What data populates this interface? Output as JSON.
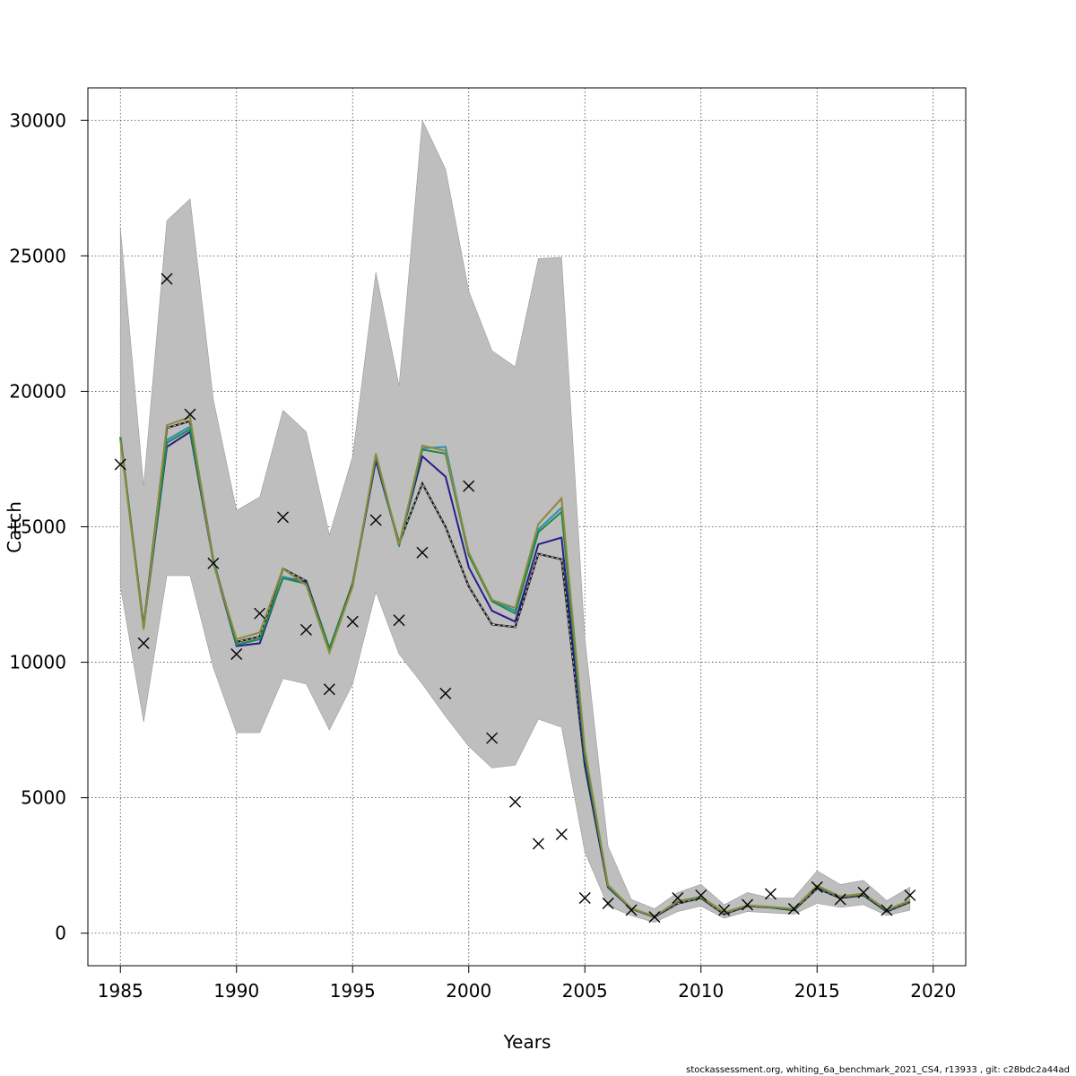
{
  "chart_data": {
    "type": "line",
    "xlabel": "Years",
    "ylabel": "Catch",
    "xlim": [
      1983.6,
      2021.4
    ],
    "ylim": [
      -1200,
      31200
    ],
    "xticks": [
      1985,
      1990,
      1995,
      2000,
      2005,
      2010,
      2015,
      2020
    ],
    "yticks": [
      0,
      5000,
      10000,
      15000,
      20000,
      25000,
      30000
    ],
    "grid": true,
    "x": [
      1985,
      1986,
      1987,
      1988,
      1989,
      1990,
      1991,
      1992,
      1993,
      1994,
      1995,
      1996,
      1997,
      1998,
      1999,
      2000,
      2001,
      2002,
      2003,
      2004,
      2005,
      2006,
      2007,
      2008,
      2009,
      2010,
      2011,
      2012,
      2013,
      2014,
      2015,
      2016,
      2017,
      2018,
      2019
    ],
    "band": {
      "upper": [
        26000,
        16500,
        26300,
        27100,
        19700,
        15600,
        16100,
        19300,
        18500,
        14700,
        17600,
        24400,
        20200,
        30000,
        28200,
        23700,
        21500,
        20900,
        24900,
        24950,
        10900,
        3200,
        1250,
        900,
        1500,
        1800,
        1050,
        1500,
        1300,
        1300,
        2300,
        1800,
        1950,
        1200,
        1700
      ],
      "lower": [
        12800,
        7800,
        13200,
        13200,
        9800,
        7400,
        7400,
        9400,
        9200,
        7500,
        9200,
        12600,
        10300,
        9200,
        8000,
        6900,
        6100,
        6200,
        7900,
        7600,
        3000,
        1000,
        650,
        400,
        800,
        1000,
        550,
        800,
        750,
        700,
        1100,
        950,
        1050,
        650,
        850
      ]
    },
    "series": [
      {
        "color": "#1a1a1a",
        "dashed": true,
        "values": [
          18300,
          11300,
          18650,
          18900,
          13750,
          10750,
          10950,
          13450,
          13000,
          10500,
          12900,
          17500,
          14400,
          16600,
          15000,
          12800,
          11400,
          11300,
          14000,
          13800,
          6200,
          1700,
          900,
          600,
          1100,
          1300,
          700,
          1000,
          950,
          850,
          1650,
          1300,
          1400,
          800,
          1150
        ]
      },
      {
        "color": "#2a1c8a",
        "dashed": false,
        "values": [
          18300,
          11300,
          17950,
          18500,
          13700,
          10600,
          10700,
          13150,
          12950,
          10450,
          12850,
          17450,
          14350,
          17600,
          16850,
          13500,
          11900,
          11500,
          14350,
          14600,
          6300,
          1700,
          900,
          600,
          1150,
          1320,
          750,
          1000,
          950,
          880,
          1700,
          1320,
          1420,
          820,
          1180
        ]
      },
      {
        "color": "#2a8fb0",
        "dashed": false,
        "values": [
          18300,
          11300,
          18200,
          18700,
          13800,
          10650,
          10850,
          13150,
          12900,
          10500,
          12850,
          17650,
          14300,
          17900,
          17950,
          14000,
          12300,
          11900,
          14900,
          15700,
          6600,
          1750,
          900,
          620,
          1180,
          1340,
          760,
          1020,
          960,
          880,
          1750,
          1350,
          1450,
          850,
          1200
        ]
      },
      {
        "color": "#1a8a4a",
        "dashed": false,
        "values": [
          18300,
          11300,
          18100,
          18600,
          13750,
          10650,
          10850,
          13100,
          12900,
          10500,
          12850,
          17600,
          14300,
          17850,
          17700,
          13950,
          12250,
          11800,
          14800,
          15550,
          6550,
          1740,
          900,
          620,
          1170,
          1330,
          755,
          1015,
          955,
          880,
          1730,
          1340,
          1440,
          840,
          1190
        ]
      },
      {
        "color": "#8c8a3a",
        "dashed": false,
        "values": [
          18200,
          11200,
          18750,
          19050,
          13650,
          10850,
          11100,
          13450,
          12850,
          10350,
          12800,
          17700,
          14350,
          18000,
          17800,
          14050,
          12300,
          12000,
          15100,
          16050,
          6800,
          1780,
          920,
          620,
          1180,
          1350,
          770,
          1030,
          970,
          900,
          1760,
          1350,
          1460,
          860,
          1210
        ]
      }
    ],
    "observed": [
      17300,
      10700,
      24150,
      19150,
      13650,
      10300,
      11800,
      15350,
      11200,
      9000,
      11500,
      15250,
      11550,
      14050,
      8850,
      16500,
      7200,
      4850,
      3300,
      3650,
      1300,
      1100,
      850,
      600,
      1300,
      1400,
      850,
      1050,
      1450,
      900,
      1700,
      1250,
      1500,
      850,
      1400
    ]
  },
  "footer": "stockassessment.org, whiting_6a_benchmark_2021_CS4, r13933 , git: c28bdc2a44ad"
}
